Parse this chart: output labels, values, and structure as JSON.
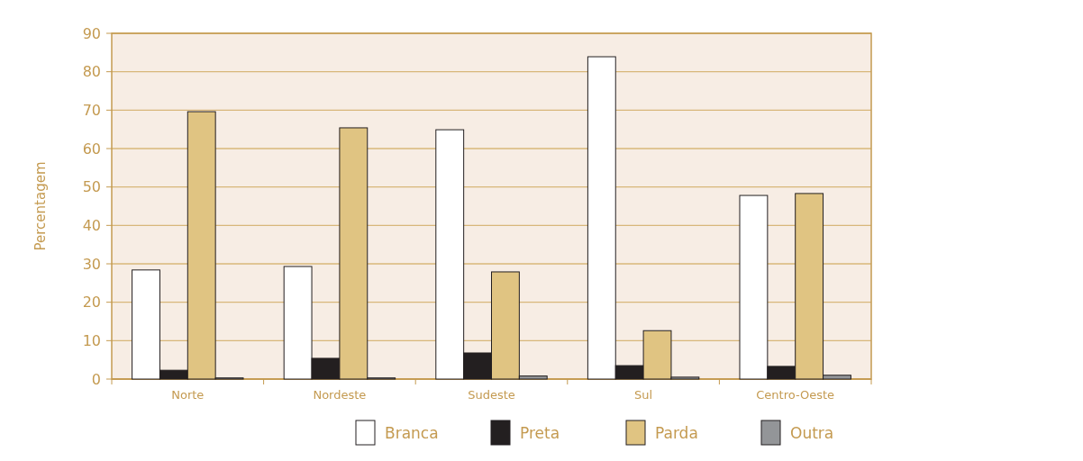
{
  "chart_data": {
    "type": "bar",
    "ylabel": "Percentagem",
    "categories": [
      "Norte",
      "Nordeste",
      "Sudeste",
      "Sul",
      "Centro-Oeste"
    ],
    "series": [
      {
        "name": "Branca",
        "color": "#ffffff",
        "values": [
          28.4,
          29.3,
          64.9,
          83.9,
          47.8
        ]
      },
      {
        "name": "Preta",
        "color": "#231f20",
        "values": [
          2.3,
          5.4,
          6.8,
          3.5,
          3.3
        ]
      },
      {
        "name": "Parda",
        "color": "#e0c482",
        "values": [
          69.6,
          65.4,
          27.9,
          12.6,
          48.3
        ]
      },
      {
        "name": "Outra",
        "color": "#939598",
        "values": [
          0.3,
          0.3,
          0.8,
          0.5,
          1.0
        ]
      }
    ],
    "ylim": [
      0,
      90
    ],
    "yticks": [
      0,
      10,
      20,
      30,
      40,
      50,
      60,
      70,
      80,
      90
    ],
    "grid": "y",
    "legend": "bottom"
  }
}
